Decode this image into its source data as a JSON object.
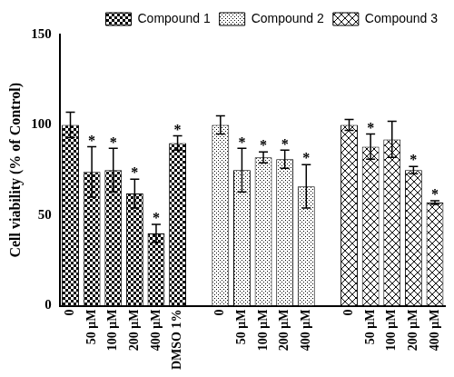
{
  "chart_data": {
    "type": "bar",
    "ylabel": "Cell viability (% of Control)",
    "categories": [
      "0",
      "50 μM",
      "100 μM",
      "200 μM",
      "400 μM",
      "DMSO 1%",
      null,
      "0",
      "50 μM",
      "100 μM",
      "200 μM",
      "400 μM",
      null,
      "0",
      "50 μM",
      "100 μM",
      "200 μM",
      "400 μM"
    ],
    "ylim": [
      0,
      150
    ],
    "yticks": [
      0,
      50,
      100,
      150
    ],
    "grid": false,
    "legend": "top right",
    "series": [
      {
        "name": "Compound 1",
        "color": "#000000",
        "values": [
          100,
          74,
          75,
          62,
          40,
          90,
          null,
          null,
          null,
          null,
          null,
          null,
          null,
          null,
          null,
          null,
          null,
          null
        ],
        "error": [
          7,
          14,
          12,
          8,
          5,
          4,
          null,
          null,
          null,
          null,
          null,
          null,
          null,
          null,
          null,
          null,
          null,
          null
        ],
        "marks": [
          null,
          "*",
          "*",
          "*",
          "*",
          "*",
          null,
          null,
          null,
          null,
          null,
          null,
          null,
          null,
          null,
          null,
          null,
          null
        ]
      },
      {
        "name": "Compound 2",
        "color": "#000000",
        "values": [
          null,
          null,
          null,
          null,
          null,
          null,
          null,
          100,
          75,
          82,
          81,
          66,
          null,
          null,
          null,
          null,
          null,
          null
        ],
        "error": [
          null,
          null,
          null,
          null,
          null,
          null,
          null,
          5,
          12,
          3,
          5,
          12,
          null,
          null,
          null,
          null,
          null,
          null
        ],
        "marks": [
          null,
          null,
          null,
          null,
          null,
          null,
          null,
          null,
          "*",
          "*",
          "*",
          "*",
          null,
          null,
          null,
          null,
          null,
          null
        ]
      },
      {
        "name": "Compound 3",
        "color": "#000000",
        "values": [
          null,
          null,
          null,
          null,
          null,
          null,
          null,
          null,
          null,
          null,
          null,
          null,
          null,
          100,
          88,
          92,
          75,
          57
        ],
        "error": [
          null,
          null,
          null,
          null,
          null,
          null,
          null,
          null,
          null,
          null,
          null,
          null,
          null,
          3,
          7,
          10,
          2,
          1
        ],
        "marks": [
          null,
          null,
          null,
          null,
          null,
          null,
          null,
          null,
          null,
          null,
          null,
          null,
          null,
          null,
          "*",
          null,
          "*",
          "*"
        ]
      }
    ]
  }
}
